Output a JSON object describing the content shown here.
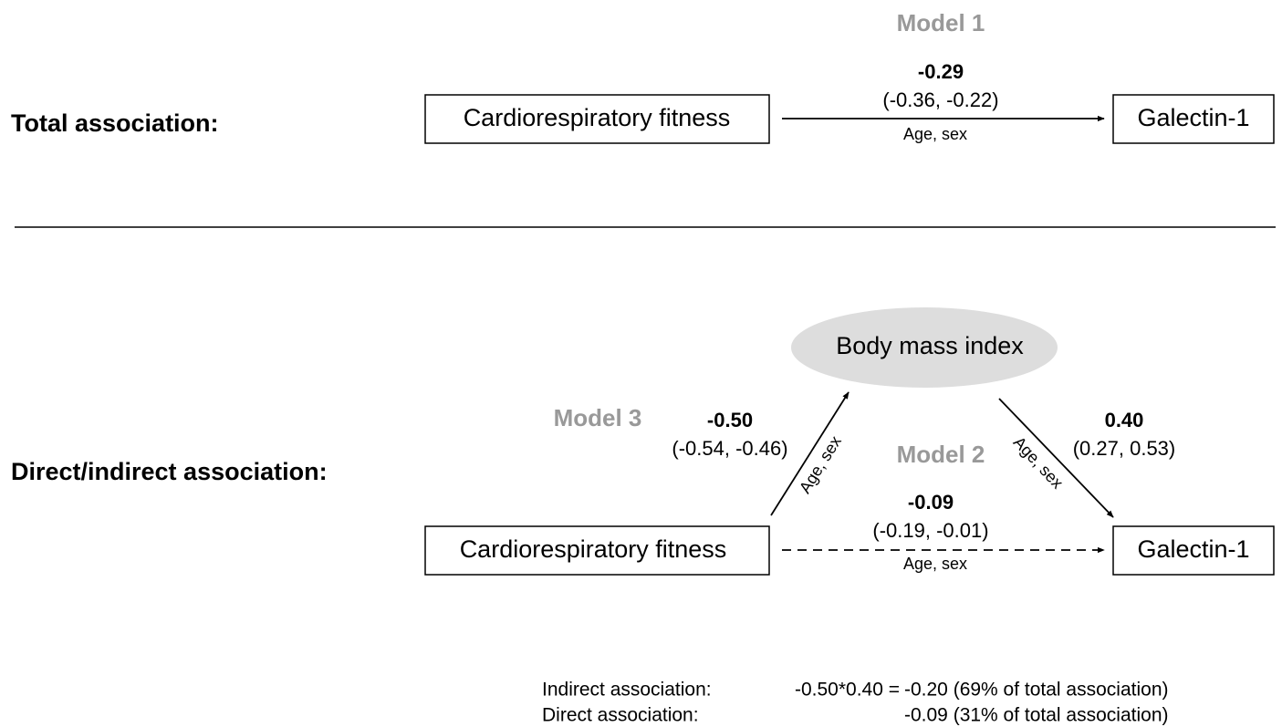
{
  "total": {
    "label": "Total association:",
    "model": "Model 1",
    "from": "Cardiorespiratory fitness",
    "to": "Galectin-1",
    "estimate": "-0.29",
    "ci": "(-0.36, -0.22)",
    "adjustment": "Age, sex"
  },
  "mediation": {
    "label": "Direct/indirect association:",
    "from": "Cardiorespiratory fitness",
    "mediator": "Body mass index",
    "to": "Galectin-1",
    "path_a": {
      "model": "Model 3",
      "estimate": "-0.50",
      "ci": "(-0.54, -0.46)",
      "adjustment": "Age, sex"
    },
    "path_b": {
      "estimate": "0.40",
      "ci": "(0.27, 0.53)",
      "adjustment": "Age, sex"
    },
    "direct": {
      "model": "Model 2",
      "estimate": "-0.09",
      "ci": "(-0.19, -0.01)",
      "adjustment": "Age, sex"
    }
  },
  "summary": [
    {
      "label": "Indirect association:",
      "formula": "-0.50*0.40 =",
      "result": "-0.20 (69% of total association)"
    },
    {
      "label": "Direct association:",
      "result": "-0.09 (31% of total association)"
    }
  ]
}
